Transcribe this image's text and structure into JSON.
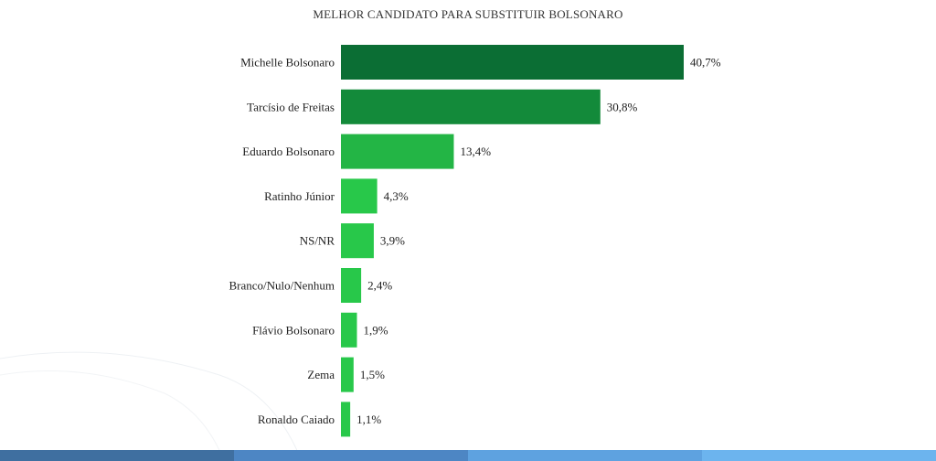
{
  "chart_data": {
    "type": "bar",
    "orientation": "horizontal",
    "title": "MELHOR CANDIDATO PARA SUBSTITUIR BOLSONARO",
    "categories": [
      "Michelle Bolsonaro",
      "Tarcísio de Freitas",
      "Eduardo Bolsonaro",
      "Ratinho Júnior",
      "NS/NR",
      "Branco/Nulo/Nenhum",
      "Flávio Bolsonaro",
      "Zema",
      "Ronaldo Caiado"
    ],
    "values": [
      40.7,
      30.8,
      13.4,
      4.3,
      3.9,
      2.4,
      1.9,
      1.5,
      1.1
    ],
    "value_labels": [
      "40,7%",
      "30,8%",
      "13,4%",
      "4,3%",
      "3,9%",
      "2,4%",
      "1,9%",
      "1,5%",
      "1,1%"
    ],
    "bar_colors": [
      "#0b6e34",
      "#138a3a",
      "#23b545",
      "#28c84a",
      "#28c84a",
      "#28c84a",
      "#28c84a",
      "#28c84a",
      "#28c84a"
    ],
    "xlim": [
      0,
      40.7
    ],
    "grid": false,
    "legend": "none"
  },
  "footer": {
    "band_colors": [
      "#3f6fa0",
      "#4d86c4",
      "#5ea2e0",
      "#6cb4ee"
    ]
  }
}
